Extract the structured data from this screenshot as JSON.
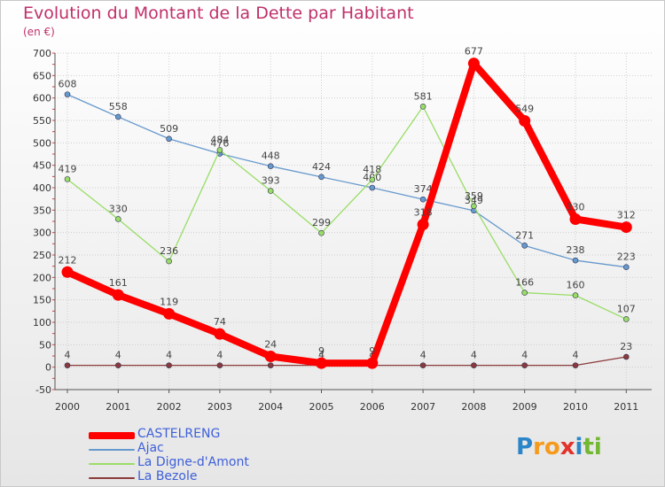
{
  "chart_data": {
    "type": "line",
    "title": "Evolution du Montant de la Dette par Habitant",
    "ylabel": "(en €)",
    "xlabel": "",
    "categories": [
      "2000",
      "2001",
      "2002",
      "2003",
      "2004",
      "2005",
      "2006",
      "2007",
      "2008",
      "2009",
      "2010",
      "2011"
    ],
    "ylim": [
      -50,
      700
    ],
    "yticks": [
      -50,
      0,
      50,
      100,
      150,
      200,
      250,
      300,
      350,
      400,
      450,
      500,
      550,
      600,
      650,
      700
    ],
    "grid": true,
    "legend_position": "bottom-left",
    "series": [
      {
        "name": "CASTELRENG",
        "color": "#ff0000",
        "values": [
          212,
          161,
          119,
          74,
          24,
          9,
          9,
          318,
          677,
          549,
          330,
          312
        ]
      },
      {
        "name": "Ajac",
        "color": "#6699cc",
        "values": [
          608,
          558,
          509,
          476,
          448,
          424,
          400,
          374,
          349,
          271,
          238,
          223
        ]
      },
      {
        "name": "La Digne-d'Amont",
        "color": "#99dd66",
        "values": [
          419,
          330,
          236,
          484,
          393,
          299,
          418,
          581,
          359,
          166,
          160,
          107
        ]
      },
      {
        "name": "La Bezole",
        "color": "#8b3a3a",
        "values": [
          4,
          4,
          4,
          4,
          4,
          4,
          4,
          4,
          4,
          4,
          4,
          23
        ]
      }
    ]
  },
  "logo": {
    "letters": [
      "P",
      "r",
      "o",
      "x",
      "i",
      "t",
      "i"
    ],
    "colors": [
      "#2a86c8",
      "#f59a1b",
      "#f59a1b",
      "#e4312a",
      "#2a86c8",
      "#72b832",
      "#72b832"
    ]
  }
}
